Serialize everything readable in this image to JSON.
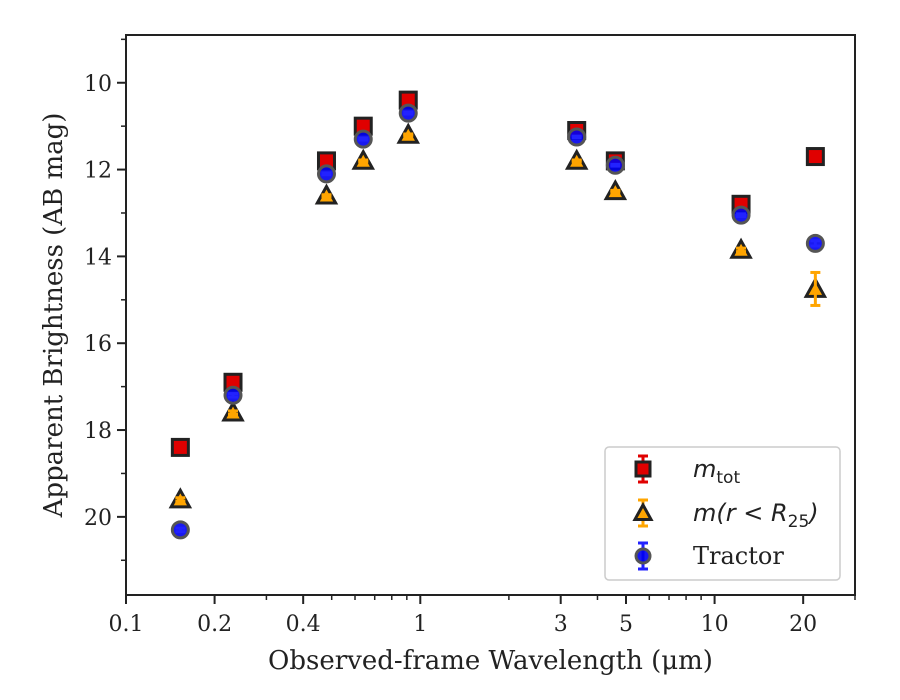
{
  "chart_data": {
    "type": "scatter",
    "xlabel": "Observed-frame Wavelength (μm)",
    "ylabel": "Apparent Brightness (AB mag)",
    "xscale": "log",
    "xlim": [
      0.1,
      30
    ],
    "ylim": [
      21.8,
      8.9
    ],
    "y_inverted": true,
    "xticks": [
      0.1,
      0.2,
      0.4,
      1,
      3,
      5,
      10,
      20
    ],
    "xtick_labels": [
      "0.1",
      "0.2",
      "0.4",
      "1",
      "3",
      "5",
      "10",
      "20"
    ],
    "yticks": [
      10,
      12,
      14,
      16,
      18,
      20
    ],
    "ytick_labels": [
      "10",
      "12",
      "14",
      "16",
      "18",
      "20"
    ],
    "grid": false,
    "legend_position": "bottom-right",
    "series": [
      {
        "name": "m_tot",
        "marker": "square",
        "color": "#e00000",
        "edge_color": "#222222",
        "errorbar_color": "#e00000",
        "x": [
          0.153,
          0.231,
          0.48,
          0.64,
          0.91,
          3.4,
          4.6,
          12.3,
          22.0
        ],
        "y": [
          18.4,
          16.9,
          11.8,
          11.0,
          10.4,
          11.1,
          11.8,
          12.8,
          11.7
        ],
        "yerr": [
          0.04,
          0.04,
          0.02,
          0.02,
          0.02,
          0.02,
          0.02,
          0.03,
          0.03
        ]
      },
      {
        "name": "m(r<R_25)",
        "marker": "triangle",
        "color": "#ffa500",
        "edge_color": "#222222",
        "errorbar_color": "#ffa500",
        "x": [
          0.153,
          0.231,
          0.48,
          0.64,
          0.91,
          3.4,
          4.6,
          12.3,
          22.0
        ],
        "y": [
          19.6,
          17.6,
          12.6,
          11.8,
          11.2,
          11.8,
          12.5,
          13.85,
          14.75
        ],
        "yerr": [
          0.04,
          0.04,
          0.02,
          0.02,
          0.02,
          0.02,
          0.02,
          0.04,
          0.38
        ]
      },
      {
        "name": "Tractor",
        "marker": "circle",
        "color": "#0000ee",
        "edge_color": "#555555",
        "errorbar_color": "#2222ff",
        "x": [
          0.153,
          0.231,
          0.48,
          0.64,
          0.91,
          3.4,
          4.6,
          12.3,
          22.0
        ],
        "y": [
          20.3,
          17.2,
          12.1,
          11.3,
          10.7,
          11.25,
          11.9,
          13.05,
          13.7
        ],
        "yerr": [
          0.04,
          0.04,
          0.02,
          0.02,
          0.02,
          0.02,
          0.02,
          0.03,
          0.06
        ]
      }
    ]
  },
  "legend": {
    "items": [
      {
        "prefix": "m",
        "sub": "tot",
        "suffix": ""
      },
      {
        "prefix": "m(r < R",
        "sub": "25",
        "suffix": ")"
      },
      {
        "prefix": "",
        "sub": "",
        "suffix": "",
        "plain": "Tractor"
      }
    ]
  }
}
